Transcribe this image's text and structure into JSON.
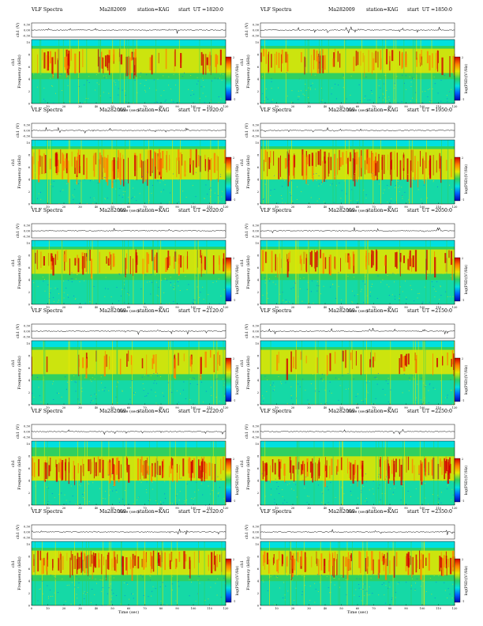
{
  "common": {
    "title": "VLF Spectra",
    "date": "Ma282009",
    "station": "station=KAG",
    "ut_prefix": "start  UT =",
    "ch_label": "ch1 (V)",
    "freq_label": "Frequency  (kHz)",
    "ch1_side": "ch1",
    "time_label": "Time  (sec)",
    "cbar_label": "log(PSD)(V²/Hz)",
    "amp_ticks": [
      "0.30",
      "0.00",
      "-0.30"
    ],
    "freq_ticks": [
      "0",
      "2",
      "4",
      "6",
      "8",
      "10"
    ],
    "time_ticks": [
      "0",
      "10",
      "20",
      "30",
      "40",
      "50",
      "60",
      "70",
      "80",
      "90",
      "100",
      "110",
      "120"
    ],
    "cbar_ticks_top": "2",
    "cbar_ticks_bottom": "-1",
    "colormap": [
      "#0000b0",
      "#0060ff",
      "#00e0e0",
      "#30d060",
      "#e8e800",
      "#ff8000",
      "#d00000"
    ]
  },
  "chart_data": [
    {
      "type": "heatmap",
      "start_ut": "1820:0",
      "xlim": [
        0,
        120
      ],
      "ylim": [
        0,
        10
      ],
      "dominant_band_khz": [
        5,
        9
      ],
      "intensity": "medium"
    },
    {
      "type": "heatmap",
      "start_ut": "1850:0",
      "xlim": [
        0,
        120
      ],
      "ylim": [
        0,
        10
      ],
      "dominant_band_khz": [
        5,
        9
      ],
      "intensity": "medium"
    },
    {
      "type": "heatmap",
      "start_ut": "1920:0",
      "xlim": [
        0,
        120
      ],
      "ylim": [
        0,
        10
      ],
      "dominant_band_khz": [
        4,
        9
      ],
      "intensity": "high"
    },
    {
      "type": "heatmap",
      "start_ut": "1950:0",
      "xlim": [
        0,
        120
      ],
      "ylim": [
        0,
        10
      ],
      "dominant_band_khz": [
        4,
        9
      ],
      "intensity": "high"
    },
    {
      "type": "heatmap",
      "start_ut": "2020:0",
      "xlim": [
        0,
        120
      ],
      "ylim": [
        0,
        10
      ],
      "dominant_band_khz": [
        5,
        9
      ],
      "intensity": "medium"
    },
    {
      "type": "heatmap",
      "start_ut": "2050:0",
      "xlim": [
        0,
        120
      ],
      "ylim": [
        0,
        10
      ],
      "dominant_band_khz": [
        5,
        9
      ],
      "intensity": "medium"
    },
    {
      "type": "heatmap",
      "start_ut": "2120:0",
      "xlim": [
        0,
        120
      ],
      "ylim": [
        0,
        10
      ],
      "dominant_band_khz": [
        5,
        9
      ],
      "intensity": "low"
    },
    {
      "type": "heatmap",
      "start_ut": "2150:0",
      "xlim": [
        0,
        120
      ],
      "ylim": [
        0,
        10
      ],
      "dominant_band_khz": [
        5,
        9
      ],
      "intensity": "low"
    },
    {
      "type": "heatmap",
      "start_ut": "2220:0",
      "xlim": [
        0,
        120
      ],
      "ylim": [
        0,
        10
      ],
      "dominant_band_khz": [
        4,
        8
      ],
      "intensity": "high"
    },
    {
      "type": "heatmap",
      "start_ut": "2250:0",
      "xlim": [
        0,
        120
      ],
      "ylim": [
        0,
        10
      ],
      "dominant_band_khz": [
        4,
        8
      ],
      "intensity": "high"
    },
    {
      "type": "heatmap",
      "start_ut": "2320:0",
      "xlim": [
        0,
        120
      ],
      "ylim": [
        0,
        10
      ],
      "dominant_band_khz": [
        5,
        9
      ],
      "intensity": "high"
    },
    {
      "type": "heatmap",
      "start_ut": "2350:0",
      "xlim": [
        0,
        120
      ],
      "ylim": [
        0,
        10
      ],
      "dominant_band_khz": [
        5,
        9
      ],
      "intensity": "high"
    }
  ]
}
